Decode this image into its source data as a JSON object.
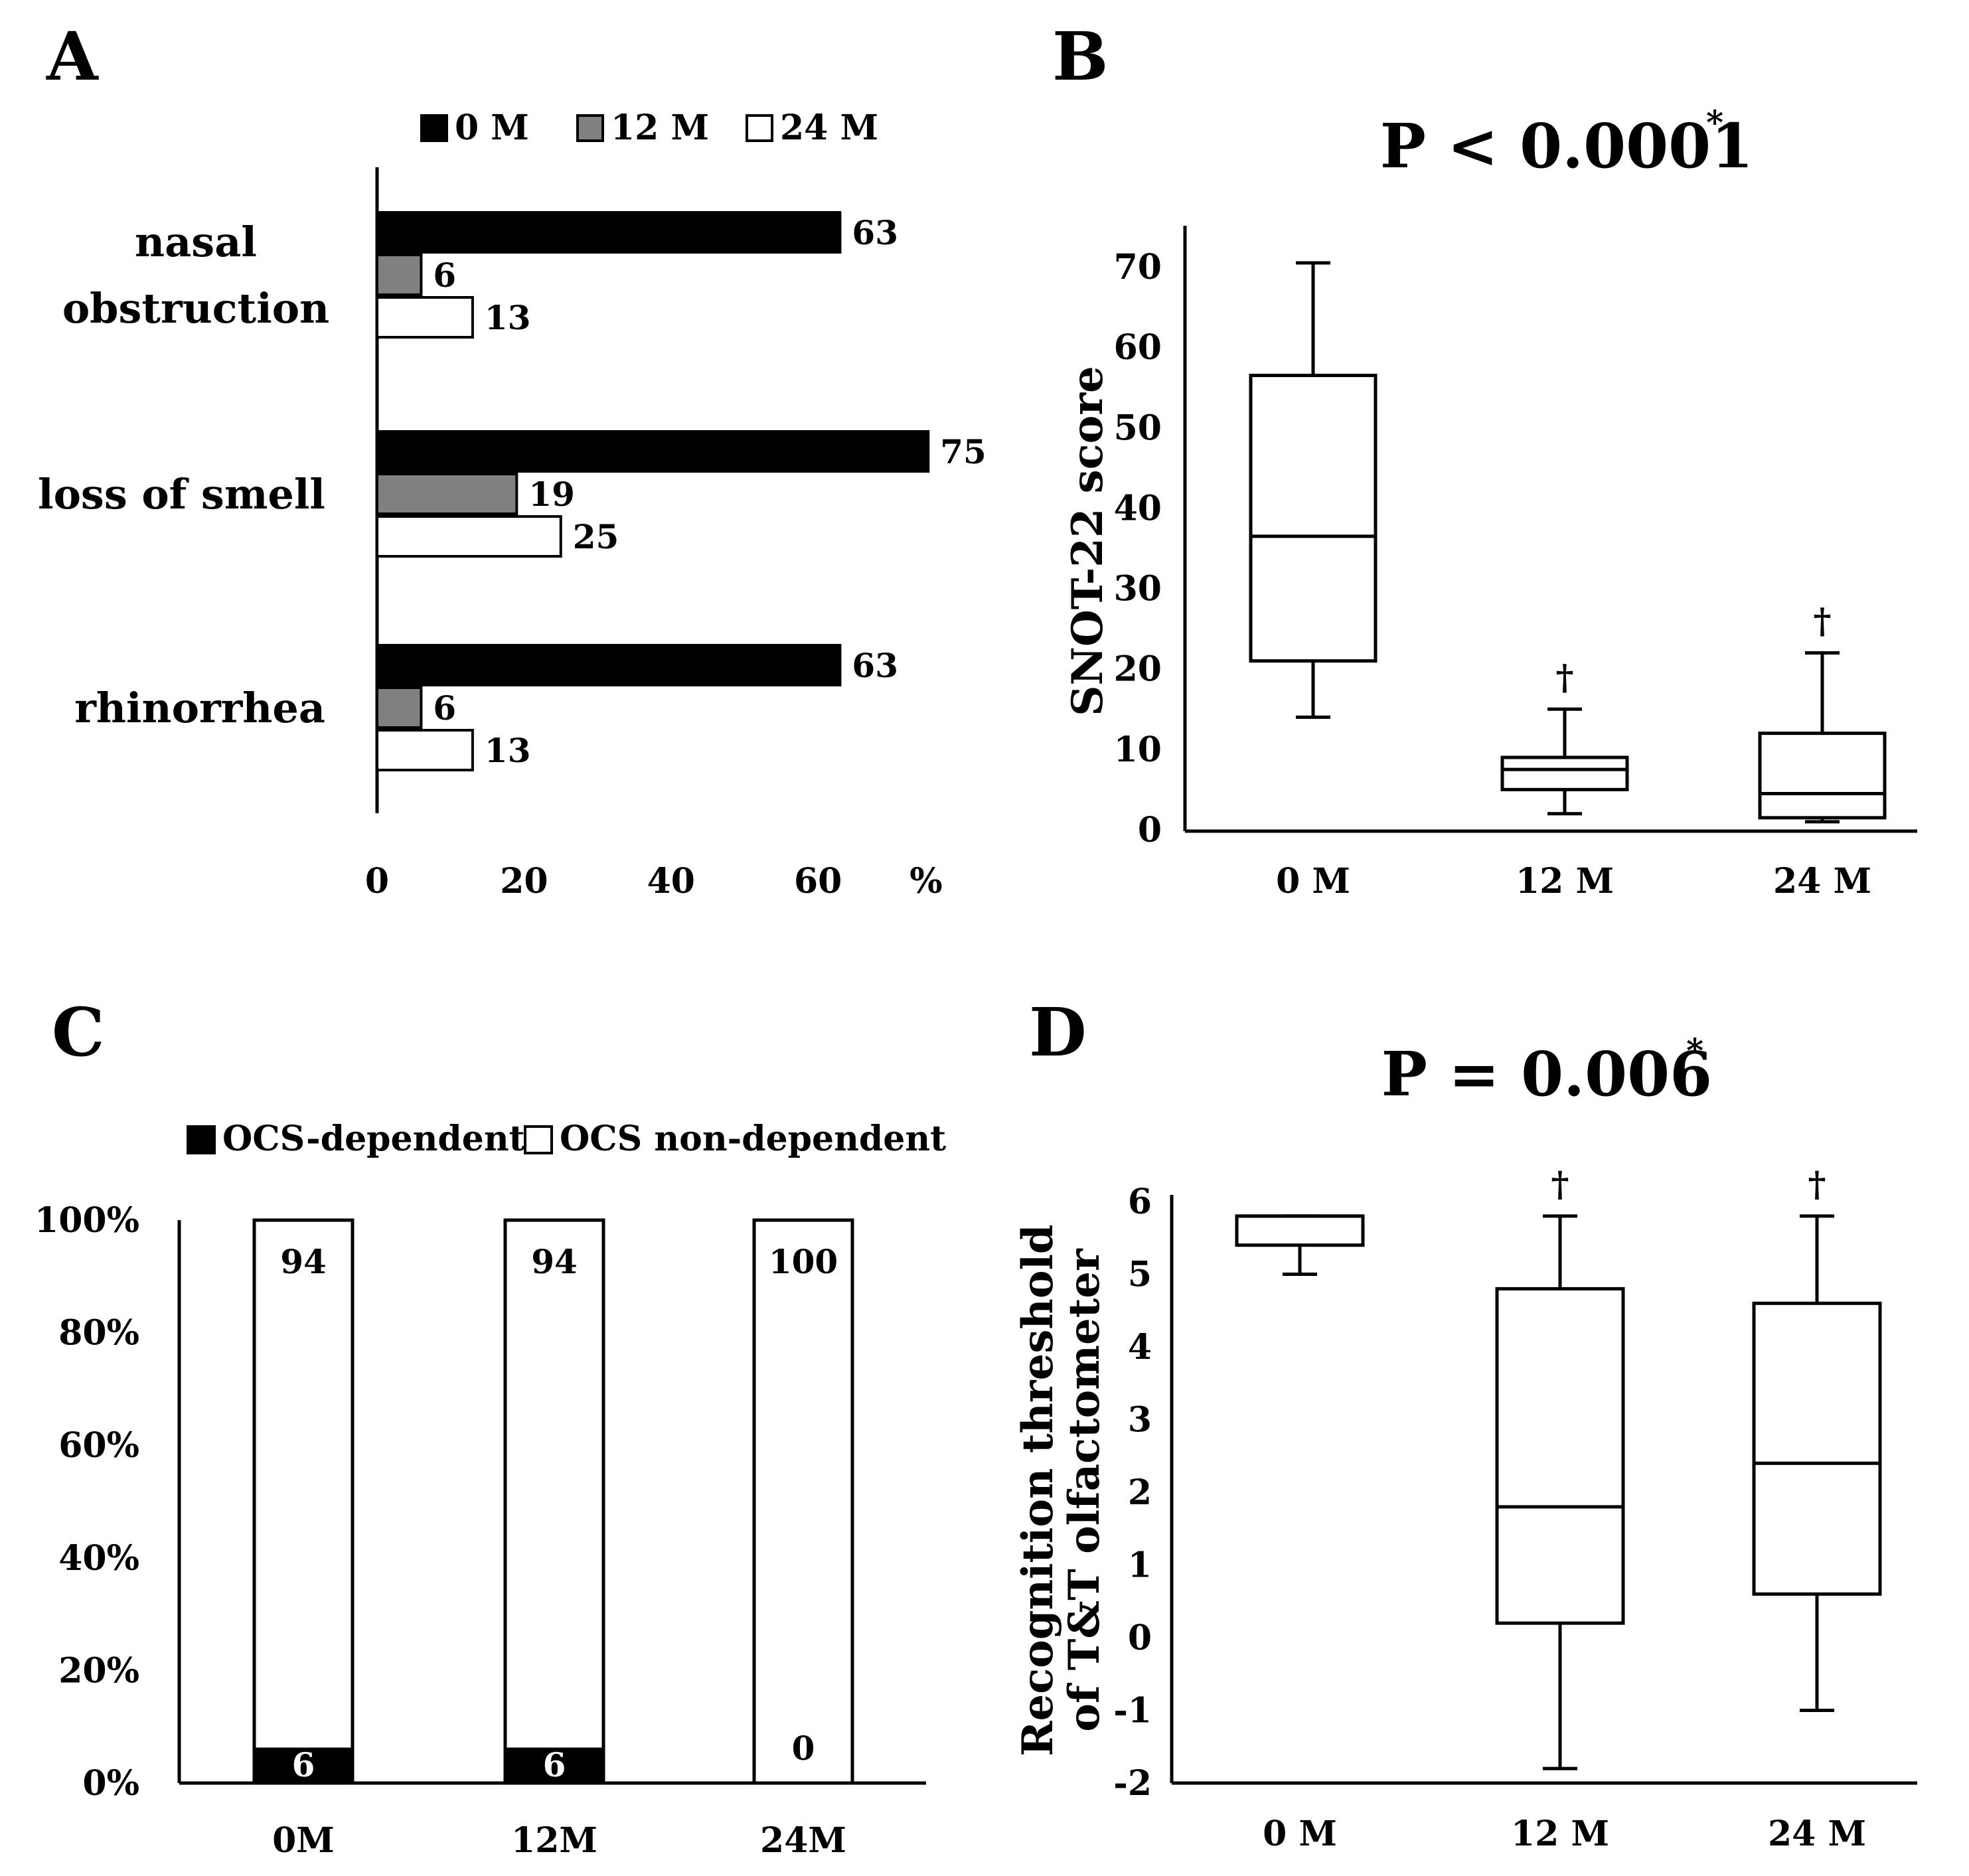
{
  "colors": {
    "black": "#000000",
    "gray": "#808080",
    "white": "#ffffff"
  },
  "chart_data": [
    {
      "panel": "A",
      "type": "bar",
      "orientation": "horizontal",
      "categories": [
        "nasal obstruction",
        "loss of smell",
        "rhinorrhea"
      ],
      "category_lines": [
        [
          "nasal",
          "obstruction"
        ],
        [
          "loss of smell"
        ],
        [
          "rhinorrhea"
        ]
      ],
      "series": [
        {
          "name": "0 M",
          "color": "#000000",
          "values": [
            63,
            75,
            63
          ]
        },
        {
          "name": "12 M",
          "color": "#808080",
          "values": [
            6,
            19,
            6
          ]
        },
        {
          "name": "24 M",
          "color": "#ffffff",
          "values": [
            13,
            25,
            13
          ]
        }
      ],
      "xticks": [
        0,
        20,
        40,
        60
      ],
      "xtick_labels": [
        "0",
        "20",
        "40",
        "60"
      ],
      "xlabel": "%",
      "xlim": [
        0,
        75
      ],
      "legend": "top"
    },
    {
      "panel": "B",
      "type": "box",
      "title": "P < 0.0001",
      "title_mark": "*",
      "ylabel": "SNOT-22 score",
      "categories": [
        "0 M",
        "12 M",
        "24 M"
      ],
      "yticks": [
        0,
        10,
        20,
        30,
        40,
        50,
        60,
        70
      ],
      "ylim": [
        0,
        75
      ],
      "boxes": [
        {
          "label": "0 M",
          "min": 14,
          "q1": 21,
          "median": 36.5,
          "q3": 56.5,
          "max": 70.5,
          "mark": ""
        },
        {
          "label": "12 M",
          "min": 2,
          "q1": 5,
          "median": 7.5,
          "q3": 9,
          "max": 15,
          "mark": "†"
        },
        {
          "label": "24 M",
          "min": 1,
          "q1": 1.5,
          "median": 4.5,
          "q3": 12,
          "max": 22,
          "mark": "†"
        }
      ]
    },
    {
      "panel": "C",
      "type": "bar",
      "stacked": true,
      "categories": [
        "0M",
        "12M",
        "24M"
      ],
      "series": [
        {
          "name": "OCS-dependent",
          "color": "#000000",
          "values": [
            6,
            6,
            0
          ],
          "labels": [
            "6",
            "6",
            "0"
          ]
        },
        {
          "name": "OCS non-dependent",
          "color": "#ffffff",
          "values": [
            94,
            94,
            100
          ],
          "labels": [
            "94",
            "94",
            "100"
          ]
        }
      ],
      "yticks": [
        0,
        20,
        40,
        60,
        80,
        100
      ],
      "ytick_labels": [
        "0%",
        "20%",
        "40%",
        "60%",
        "80%",
        "100%"
      ],
      "ylim": [
        0,
        100
      ],
      "legend": "top"
    },
    {
      "panel": "D",
      "type": "box",
      "title": "P = 0.006",
      "title_mark": "*",
      "ylabel_lines": [
        "Recognition threshold",
        "of T&T olfactometer"
      ],
      "categories": [
        "0 M",
        "12 M",
        "24 M"
      ],
      "yticks": [
        -2,
        -1,
        0,
        1,
        2,
        3,
        4,
        5,
        6
      ],
      "ylim": [
        -2,
        6
      ],
      "boxes": [
        {
          "label": "0 M",
          "min": 5,
          "q1": 5.4,
          "median": 5.8,
          "q3": 5.8,
          "max": 5.8,
          "mark": ""
        },
        {
          "label": "12 M",
          "min": -1.8,
          "q1": 0.2,
          "median": 1.8,
          "q3": 4.8,
          "max": 5.8,
          "mark": "†"
        },
        {
          "label": "24 M",
          "min": -1,
          "q1": 0.6,
          "median": 2.4,
          "q3": 4.6,
          "max": 5.8,
          "mark": "†"
        }
      ]
    }
  ]
}
